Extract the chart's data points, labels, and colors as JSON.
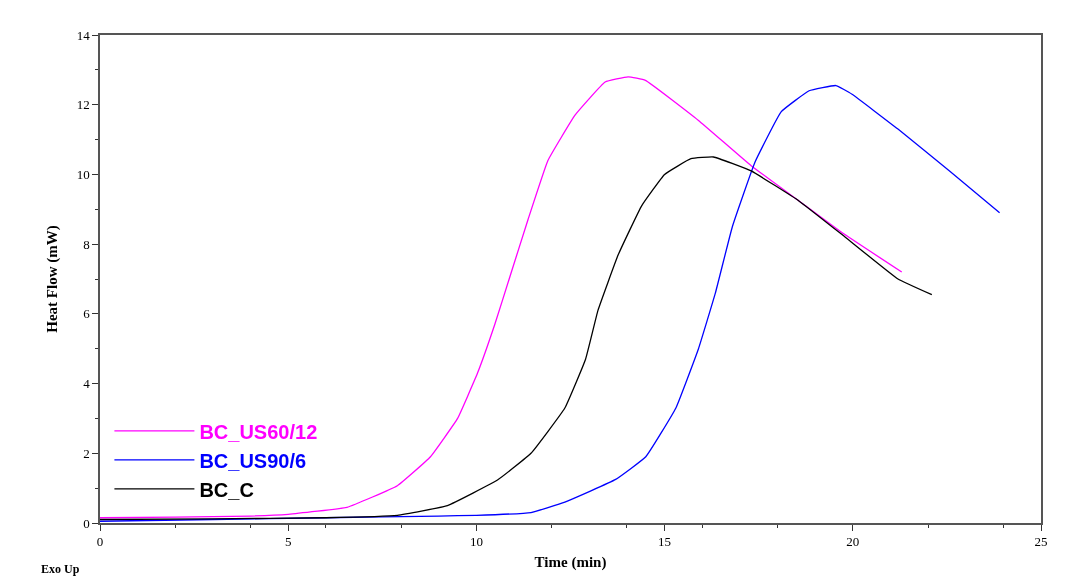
{
  "chart_data": {
    "type": "line",
    "xlabel": "Time (min)",
    "ylabel": "Heat Flow (mW)",
    "xlim": [
      0,
      25
    ],
    "xticks": [
      0,
      5,
      10,
      15,
      20,
      25
    ],
    "ylim": [
      0,
      14
    ],
    "yticks": [
      0,
      2,
      4,
      6,
      8,
      10,
      12,
      14
    ],
    "legend": "bottom left",
    "marker": "none",
    "line_style": "solid",
    "annotations": [
      "Exo Up"
    ],
    "series": [
      {
        "name": "BC_US60/12",
        "color": "#ff00ff",
        "x": [
          0,
          2,
          4,
          5,
          6.56,
          7.9,
          8.78,
          9.5,
          10.03,
          10.49,
          10.9,
          11.37,
          11.9,
          12.62,
          13.42,
          14.03,
          14.49,
          15.9,
          17.3,
          18.57,
          19.7,
          21.3
        ],
        "values": [
          0.15,
          0.17,
          0.2,
          0.25,
          0.45,
          1.07,
          1.9,
          3.0,
          4.3,
          5.7,
          7.1,
          8.7,
          10.4,
          11.7,
          12.65,
          12.8,
          12.7,
          11.55,
          10.25,
          9.24,
          8.34,
          7.2
        ]
      },
      {
        "name": "BC_US90/6",
        "color": "#0000ff",
        "x": [
          0,
          3,
          6,
          9,
          10,
          11.45,
          12.35,
          13.7,
          14.5,
          15.3,
          15.9,
          16.35,
          16.8,
          17.4,
          18.1,
          18.84,
          19.55,
          19.98,
          21.2,
          22.57,
          23.9
        ],
        "values": [
          0.05,
          0.1,
          0.15,
          0.2,
          0.22,
          0.3,
          0.6,
          1.25,
          1.9,
          3.3,
          5.0,
          6.6,
          8.5,
          10.35,
          11.8,
          12.4,
          12.55,
          12.3,
          11.3,
          10.1,
          8.9
        ]
      },
      {
        "name": "BC_C",
        "color": "#000000",
        "x": [
          0,
          3,
          6,
          7.9,
          9.23,
          10.57,
          11.45,
          12.35,
          12.9,
          13.23,
          13.77,
          14.39,
          15.0,
          15.7,
          16.3,
          17.3,
          18.57,
          19.8,
          21.2,
          22.1
        ],
        "values": [
          0.1,
          0.12,
          0.15,
          0.22,
          0.5,
          1.24,
          2.0,
          3.3,
          4.7,
          6.1,
          7.7,
          9.1,
          10.0,
          10.45,
          10.5,
          10.1,
          9.24,
          8.2,
          7.0,
          6.55
        ]
      }
    ]
  }
}
